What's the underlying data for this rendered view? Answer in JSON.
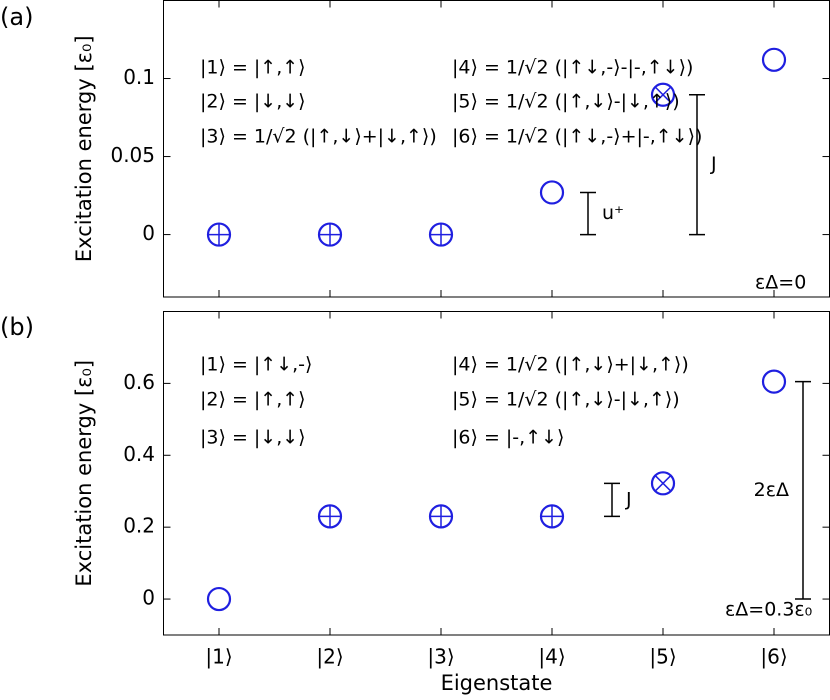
{
  "chart_data": [
    {
      "type": "scatter",
      "panel_label": "(a)",
      "ylabel": "Excitation energy [ε₀]",
      "x": [
        1,
        2,
        3,
        4,
        5,
        6
      ],
      "values": [
        0,
        0,
        0,
        0.027,
        0.0896,
        0.112
      ],
      "markers": [
        "plus",
        "plus",
        "plus",
        "circle",
        "cross",
        "circle"
      ],
      "color": "#1f1fe0",
      "xlim": [
        0.5,
        6.5
      ],
      "ylim": [
        -0.04,
        0.15
      ],
      "yticks": [
        0,
        0.05,
        0.1
      ],
      "states": [
        "|1⟩ = |↑,↑⟩",
        "|2⟩ = |↓,↓⟩",
        "|3⟩ = 1/√2 (|↑,↓⟩+|↓,↑⟩)",
        "|4⟩ = 1/√2 (|↑↓,-⟩-|-,↑↓⟩)",
        "|5⟩ = 1/√2 (|↑,↓⟩-|↓,↑⟩)",
        "|6⟩ = 1/√2 (|↑↓,-⟩+|-,↑↓⟩)"
      ],
      "annotations": [
        {
          "text": "u⁺",
          "y": [
            0,
            0.027
          ]
        },
        {
          "text": "J",
          "y": [
            0,
            0.0896
          ]
        }
      ],
      "note": "εΔ=0"
    },
    {
      "type": "scatter",
      "panel_label": "(b)",
      "ylabel": "Excitation energy [ε₀]",
      "xlabel": "Eigenstate",
      "categories": [
        "|1⟩",
        "|2⟩",
        "|3⟩",
        "|4⟩",
        "|5⟩",
        "|6⟩"
      ],
      "values": [
        0,
        0.23,
        0.23,
        0.23,
        0.322,
        0.605
      ],
      "markers": [
        "circle",
        "plus",
        "plus",
        "plus",
        "cross",
        "circle"
      ],
      "color": "#1f1fe0",
      "ylim": [
        -0.1,
        0.8
      ],
      "yticks": [
        0,
        0.2,
        0.4,
        0.6
      ],
      "states": [
        "|1⟩ = |↑↓,-⟩",
        "|2⟩ = |↑,↑⟩",
        "|3⟩ = |↓,↓⟩",
        "|4⟩ = 1/√2 (|↑,↓⟩+|↓,↑⟩)",
        "|5⟩ = 1/√2 (|↑,↓⟩-|↓,↑⟩)",
        "|6⟩ = |-,↑↓⟩"
      ],
      "annotations": [
        {
          "text": "J",
          "y": [
            0.23,
            0.322
          ]
        },
        {
          "text": "2εΔ",
          "y": [
            0,
            0.605
          ]
        }
      ],
      "note": "εΔ=0.3ε₀"
    }
  ]
}
